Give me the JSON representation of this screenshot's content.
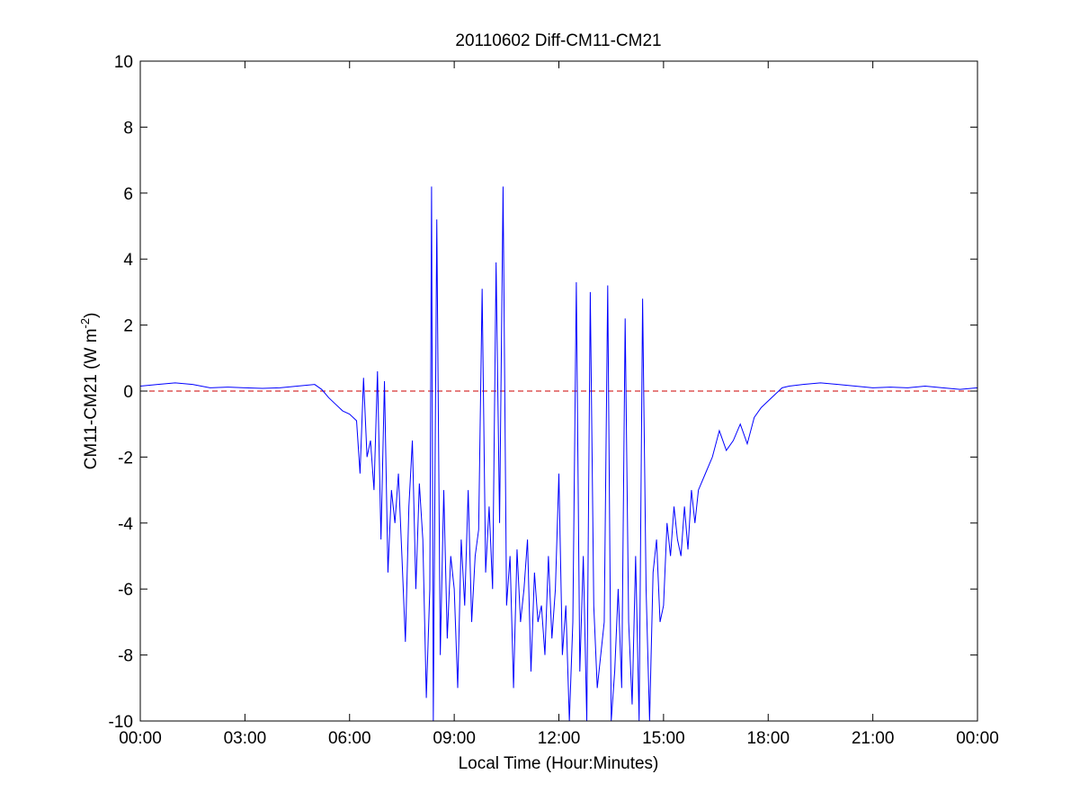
{
  "chart_data": {
    "type": "line",
    "title": "20110602 Diff-CM11-CM21",
    "xlabel": "Local Time (Hour:Minutes)",
    "ylabel_main": "CM11-CM21 (W m",
    "ylabel_sup": "-2",
    "ylabel_close": ")",
    "xlim": [
      0,
      24
    ],
    "ylim": [
      -10,
      10
    ],
    "x_ticks": [
      0,
      3,
      6,
      9,
      12,
      15,
      18,
      21,
      24
    ],
    "x_tick_labels": [
      "00:00",
      "03:00",
      "06:00",
      "09:00",
      "12:00",
      "15:00",
      "18:00",
      "21:00",
      "00:00"
    ],
    "y_ticks": [
      -10,
      -8,
      -6,
      -4,
      -2,
      0,
      2,
      4,
      6,
      8,
      10
    ],
    "y_tick_labels": [
      "-10",
      "-8",
      "-6",
      "-4",
      "-2",
      "0",
      "2",
      "4",
      "6",
      "8",
      "10"
    ],
    "grid": false,
    "reference_line": {
      "y": 0,
      "style": "dashed",
      "color": "#cc0000"
    },
    "series": [
      {
        "color": "#0000ff",
        "x_unit": "hours",
        "x": [
          0.0,
          0.5,
          1.0,
          1.5,
          2.0,
          2.5,
          3.0,
          3.5,
          4.0,
          4.5,
          5.0,
          5.2,
          5.4,
          5.6,
          5.8,
          6.0,
          6.2,
          6.3,
          6.4,
          6.5,
          6.6,
          6.7,
          6.8,
          6.9,
          7.0,
          7.1,
          7.2,
          7.3,
          7.4,
          7.5,
          7.6,
          7.7,
          7.8,
          7.9,
          8.0,
          8.1,
          8.2,
          8.3,
          8.35,
          8.4,
          8.5,
          8.6,
          8.7,
          8.8,
          8.9,
          9.0,
          9.1,
          9.2,
          9.3,
          9.4,
          9.5,
          9.6,
          9.7,
          9.8,
          9.9,
          10.0,
          10.1,
          10.2,
          10.3,
          10.4,
          10.5,
          10.6,
          10.7,
          10.8,
          10.9,
          11.0,
          11.1,
          11.2,
          11.3,
          11.4,
          11.5,
          11.6,
          11.7,
          11.8,
          11.9,
          12.0,
          12.1,
          12.2,
          12.3,
          12.4,
          12.5,
          12.6,
          12.7,
          12.8,
          12.9,
          13.0,
          13.1,
          13.2,
          13.3,
          13.4,
          13.5,
          13.6,
          13.7,
          13.8,
          13.9,
          14.0,
          14.1,
          14.2,
          14.3,
          14.4,
          14.5,
          14.6,
          14.7,
          14.8,
          14.9,
          15.0,
          15.1,
          15.2,
          15.3,
          15.4,
          15.5,
          15.6,
          15.7,
          15.8,
          15.9,
          16.0,
          16.2,
          16.4,
          16.6,
          16.8,
          17.0,
          17.2,
          17.4,
          17.6,
          17.8,
          18.0,
          18.2,
          18.4,
          18.6,
          19.0,
          19.5,
          20.0,
          20.5,
          21.0,
          21.5,
          22.0,
          22.5,
          23.0,
          23.5,
          24.0
        ],
        "y": [
          0.15,
          0.2,
          0.25,
          0.2,
          0.1,
          0.12,
          0.1,
          0.08,
          0.1,
          0.15,
          0.2,
          0.05,
          -0.2,
          -0.4,
          -0.6,
          -0.7,
          -0.9,
          -2.5,
          0.4,
          -2.0,
          -1.5,
          -3.0,
          0.6,
          -4.5,
          0.3,
          -5.5,
          -3.0,
          -4.0,
          -2.5,
          -5.0,
          -7.6,
          -3.5,
          -1.5,
          -6.0,
          -2.8,
          -4.5,
          -9.3,
          -6.0,
          6.2,
          -10.0,
          5.2,
          -8.0,
          -3.0,
          -7.5,
          -5.0,
          -6.0,
          -9.0,
          -4.5,
          -6.5,
          -3.0,
          -7.0,
          -5.0,
          -4.2,
          3.1,
          -5.5,
          -3.5,
          -6.0,
          3.9,
          -4.0,
          6.2,
          -6.5,
          -5.0,
          -9.0,
          -4.8,
          -7.0,
          -6.0,
          -4.5,
          -8.5,
          -5.5,
          -7.0,
          -6.5,
          -8.0,
          -5.0,
          -7.5,
          -6.0,
          -2.5,
          -8.0,
          -6.5,
          -10.0,
          -7.0,
          3.3,
          -8.5,
          -5.0,
          -10.0,
          3.0,
          -6.5,
          -9.0,
          -8.0,
          -7.0,
          3.2,
          -10.0,
          -8.5,
          -6.0,
          -9.0,
          2.2,
          -7.0,
          -9.5,
          -5.0,
          -10.0,
          2.8,
          -6.0,
          -10.0,
          -5.5,
          -4.5,
          -7.0,
          -6.5,
          -4.0,
          -5.0,
          -3.5,
          -4.5,
          -5.0,
          -3.5,
          -4.8,
          -3.0,
          -4.0,
          -3.0,
          -2.5,
          -2.0,
          -1.2,
          -1.8,
          -1.5,
          -1.0,
          -1.6,
          -0.8,
          -0.5,
          -0.3,
          -0.1,
          0.1,
          0.15,
          0.2,
          0.25,
          0.2,
          0.15,
          0.1,
          0.12,
          0.1,
          0.15,
          0.1,
          0.05,
          0.1
        ]
      }
    ]
  }
}
